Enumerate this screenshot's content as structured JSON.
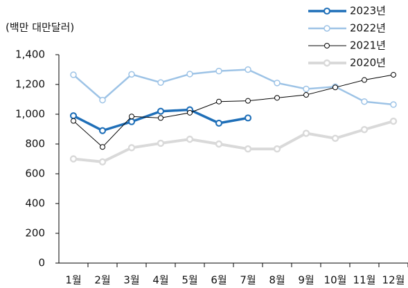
{
  "chart_data": {
    "type": "line",
    "y_label": "(백만 대만달러)",
    "categories": [
      "1월",
      "2월",
      "3월",
      "4월",
      "5월",
      "6월",
      "7월",
      "8월",
      "9월",
      "10월",
      "11월",
      "12월"
    ],
    "series": [
      {
        "name": "2023년",
        "color": "#1f6fb8",
        "values": [
          990,
          890,
          950,
          1020,
          1030,
          940,
          975,
          null,
          null,
          null,
          null,
          null
        ]
      },
      {
        "name": "2022년",
        "color": "#9dc3e6",
        "values": [
          1265,
          1095,
          1268,
          1213,
          1270,
          1290,
          1300,
          1210,
          1170,
          1185,
          1085,
          1065
        ]
      },
      {
        "name": "2021년",
        "color": "#000000",
        "values": [
          955,
          780,
          985,
          975,
          1010,
          1085,
          1090,
          1110,
          1130,
          1180,
          1230,
          1265
        ]
      },
      {
        "name": "2020년",
        "color": "#d9d9d9",
        "values": [
          700,
          680,
          775,
          805,
          832,
          800,
          767,
          767,
          872,
          838,
          897,
          953
        ]
      }
    ],
    "ylim": [
      0,
      1400
    ],
    "yticks": [
      0,
      200,
      400,
      600,
      800,
      {
        "value": 1000,
        "label": "1,000"
      },
      {
        "value": 1200,
        "label": "1,200"
      },
      {
        "value": 1400,
        "label": "1,400"
      }
    ],
    "legend": "top-right"
  }
}
